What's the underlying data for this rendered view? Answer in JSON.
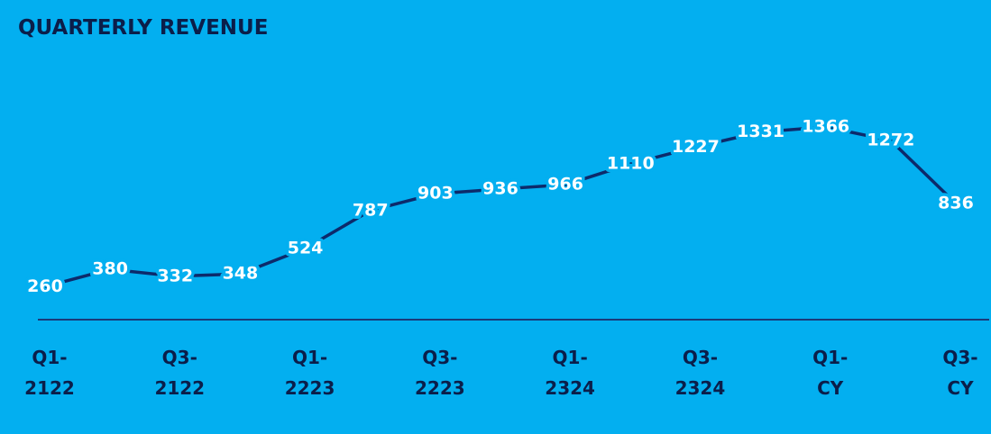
{
  "chart_data": {
    "type": "line",
    "title": "QUARTERLY REVENUE",
    "categories": [
      "Q1-2122",
      null,
      "Q3-2122",
      null,
      "Q1-2223",
      null,
      "Q3-2223",
      null,
      "Q1-2324",
      null,
      "Q3-2324",
      null,
      "Q1-CY",
      null,
      "Q3-CY"
    ],
    "series": [
      {
        "color": "#0d2a6b",
        "values": [
          260,
          380,
          332,
          348,
          524,
          787,
          903,
          936,
          966,
          1110,
          1227,
          1331,
          1366,
          1272,
          836
        ]
      }
    ]
  }
}
